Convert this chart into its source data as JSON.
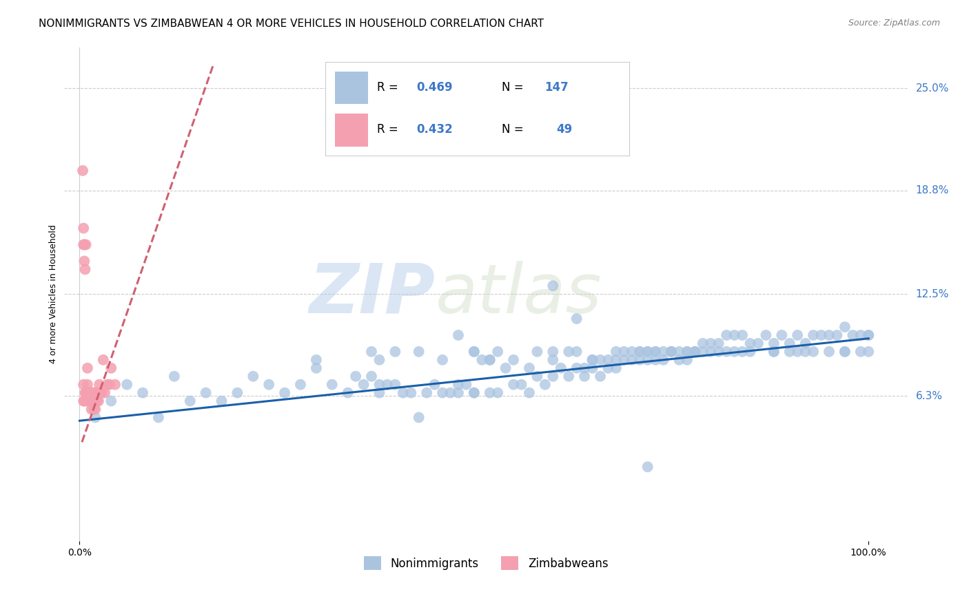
{
  "title": "NONIMMIGRANTS VS ZIMBABWEAN 4 OR MORE VEHICLES IN HOUSEHOLD CORRELATION CHART",
  "source": "Source: ZipAtlas.com",
  "ylabel": "4 or more Vehicles in Household",
  "y_tick_labels": [
    "6.3%",
    "12.5%",
    "18.8%",
    "25.0%"
  ],
  "y_tick_values": [
    0.063,
    0.125,
    0.188,
    0.25
  ],
  "xlim": [
    -0.02,
    1.05
  ],
  "ylim": [
    -0.025,
    0.275
  ],
  "blue_color": "#aac4e0",
  "pink_color": "#f4a0b0",
  "trend_blue_color": "#1a5fa8",
  "trend_pink_color": "#d06070",
  "tick_label_color": "#3c78c8",
  "legend_text_color": "#3c78c8",
  "watermark_zip": "ZIP",
  "watermark_atlas": "atlas",
  "watermark_color": "#c8d8f0",
  "grid_color": "#cccccc",
  "background_color": "#ffffff",
  "nonimmigrants_x": [
    0.02,
    0.04,
    0.06,
    0.08,
    0.1,
    0.12,
    0.14,
    0.16,
    0.18,
    0.2,
    0.22,
    0.24,
    0.26,
    0.28,
    0.3,
    0.3,
    0.32,
    0.34,
    0.35,
    0.36,
    0.37,
    0.38,
    0.38,
    0.39,
    0.4,
    0.4,
    0.41,
    0.42,
    0.43,
    0.44,
    0.45,
    0.46,
    0.47,
    0.48,
    0.48,
    0.49,
    0.5,
    0.5,
    0.51,
    0.52,
    0.52,
    0.53,
    0.54,
    0.55,
    0.56,
    0.57,
    0.57,
    0.58,
    0.59,
    0.6,
    0.6,
    0.61,
    0.62,
    0.63,
    0.63,
    0.64,
    0.64,
    0.65,
    0.65,
    0.66,
    0.66,
    0.67,
    0.67,
    0.68,
    0.68,
    0.69,
    0.69,
    0.7,
    0.71,
    0.71,
    0.72,
    0.72,
    0.73,
    0.73,
    0.74,
    0.74,
    0.75,
    0.75,
    0.76,
    0.76,
    0.77,
    0.77,
    0.78,
    0.78,
    0.79,
    0.79,
    0.8,
    0.81,
    0.82,
    0.82,
    0.83,
    0.84,
    0.85,
    0.86,
    0.87,
    0.88,
    0.89,
    0.9,
    0.91,
    0.92,
    0.93,
    0.94,
    0.95,
    0.96,
    0.97,
    0.98,
    0.99,
    1.0,
    1.0,
    0.5,
    0.55,
    0.6,
    0.65,
    0.7,
    0.73,
    0.75,
    0.78,
    0.8,
    0.85,
    0.88,
    0.9,
    0.92,
    0.95,
    0.97,
    0.99,
    1.0,
    0.46,
    0.52,
    0.58,
    0.63,
    0.68,
    0.72,
    0.77,
    0.83,
    0.88,
    0.93,
    0.97,
    0.38,
    0.48,
    0.6,
    0.72,
    0.84,
    0.37,
    0.43,
    0.53,
    0.62,
    0.71,
    0.81,
    0.91,
    0.5
  ],
  "nonimmigrants_y": [
    0.05,
    0.06,
    0.07,
    0.065,
    0.05,
    0.075,
    0.06,
    0.065,
    0.06,
    0.065,
    0.075,
    0.07,
    0.065,
    0.07,
    0.08,
    0.085,
    0.07,
    0.065,
    0.075,
    0.07,
    0.075,
    0.065,
    0.085,
    0.07,
    0.07,
    0.09,
    0.065,
    0.065,
    0.05,
    0.065,
    0.07,
    0.065,
    0.065,
    0.07,
    0.065,
    0.07,
    0.065,
    0.065,
    0.085,
    0.065,
    0.085,
    0.065,
    0.08,
    0.07,
    0.07,
    0.065,
    0.08,
    0.075,
    0.07,
    0.075,
    0.085,
    0.08,
    0.075,
    0.08,
    0.11,
    0.075,
    0.08,
    0.08,
    0.085,
    0.075,
    0.085,
    0.08,
    0.085,
    0.085,
    0.08,
    0.085,
    0.09,
    0.085,
    0.085,
    0.09,
    0.085,
    0.09,
    0.085,
    0.09,
    0.09,
    0.085,
    0.09,
    0.09,
    0.085,
    0.09,
    0.09,
    0.085,
    0.09,
    0.09,
    0.09,
    0.095,
    0.095,
    0.095,
    0.1,
    0.09,
    0.1,
    0.1,
    0.095,
    0.095,
    0.1,
    0.095,
    0.1,
    0.095,
    0.1,
    0.095,
    0.1,
    0.1,
    0.1,
    0.1,
    0.105,
    0.1,
    0.1,
    0.1,
    0.1,
    0.09,
    0.085,
    0.09,
    0.085,
    0.09,
    0.09,
    0.09,
    0.09,
    0.09,
    0.09,
    0.09,
    0.09,
    0.09,
    0.09,
    0.09,
    0.09,
    0.09,
    0.085,
    0.085,
    0.09,
    0.09,
    0.09,
    0.09,
    0.09,
    0.09,
    0.09,
    0.09,
    0.09,
    0.07,
    0.1,
    0.13,
    0.02,
    0.09,
    0.09,
    0.09,
    0.09,
    0.09,
    0.09,
    0.09,
    0.09,
    0.09
  ],
  "zimbabweans_x": [
    0.004,
    0.005,
    0.005,
    0.005,
    0.005,
    0.006,
    0.006,
    0.006,
    0.007,
    0.007,
    0.008,
    0.008,
    0.009,
    0.009,
    0.01,
    0.01,
    0.01,
    0.01,
    0.01,
    0.012,
    0.012,
    0.013,
    0.013,
    0.014,
    0.014,
    0.015,
    0.015,
    0.015,
    0.016,
    0.017,
    0.018,
    0.018,
    0.019,
    0.019,
    0.02,
    0.02,
    0.02,
    0.022,
    0.023,
    0.024,
    0.025,
    0.025,
    0.028,
    0.03,
    0.032,
    0.035,
    0.038,
    0.04,
    0.045
  ],
  "zimbabweans_y": [
    0.2,
    0.165,
    0.155,
    0.07,
    0.06,
    0.155,
    0.145,
    0.06,
    0.14,
    0.065,
    0.155,
    0.065,
    0.065,
    0.06,
    0.08,
    0.065,
    0.065,
    0.07,
    0.065,
    0.06,
    0.065,
    0.065,
    0.06,
    0.065,
    0.06,
    0.065,
    0.055,
    0.06,
    0.065,
    0.06,
    0.065,
    0.055,
    0.06,
    0.065,
    0.06,
    0.065,
    0.055,
    0.06,
    0.065,
    0.06,
    0.065,
    0.07,
    0.065,
    0.085,
    0.065,
    0.07,
    0.07,
    0.08,
    0.07
  ],
  "blue_trend_x": [
    0.0,
    1.0
  ],
  "blue_trend_y": [
    0.048,
    0.098
  ],
  "pink_trend_x": [
    0.003,
    0.17
  ],
  "pink_trend_y": [
    0.035,
    0.265
  ]
}
